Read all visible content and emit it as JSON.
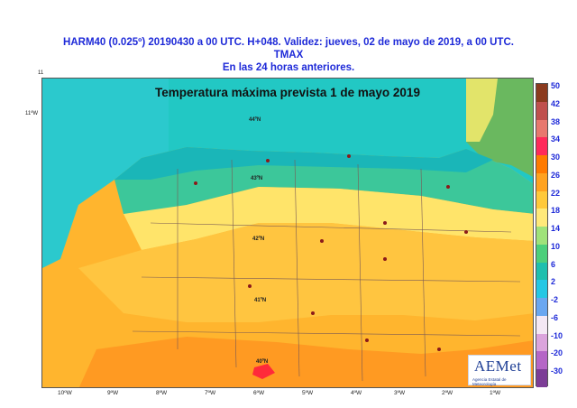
{
  "header": {
    "line1": "HARM40 (0.025º) 20190430 a 00 UTC.  H+048. Validez: jueves, 02 de mayo de 2019,  a  00 UTC.",
    "line2": "TMAX",
    "line3": "En las 24 horas anteriores."
  },
  "map": {
    "title": "Temperatura máxima prevista 1 de mayo 2019",
    "corner_top": "11",
    "corner_left": "11ºW",
    "lon_labels": [
      "10ºW",
      "9ºW",
      "8ºW",
      "7ºW",
      "6ºW",
      "5ºW",
      "4ºW",
      "3ºW",
      "2ºW",
      "1ºW"
    ],
    "lat_labels": [
      "44ºN",
      "43ºN",
      "42ºN",
      "41ºN",
      "40ºN"
    ]
  },
  "colorbar": {
    "labels": [
      "50",
      "42",
      "38",
      "34",
      "30",
      "26",
      "22",
      "18",
      "14",
      "10",
      "6",
      "2",
      "-2",
      "-6",
      "-10",
      "-20",
      "-30"
    ],
    "colors": [
      "#8b3a1e",
      "#c0504d",
      "#e8786e",
      "#ff2a5a",
      "#ff7a00",
      "#ffa21f",
      "#ffc93a",
      "#ffe97a",
      "#9fe27a",
      "#4ccf7b",
      "#1fbfae",
      "#25c7e4",
      "#6aa7f0",
      "#f4e8f4",
      "#dba4dc",
      "#b566c6",
      "#7c3d96"
    ]
  },
  "logo": {
    "brand": "AEMet",
    "subtitle": "Agencia Estatal de Meteorología"
  }
}
